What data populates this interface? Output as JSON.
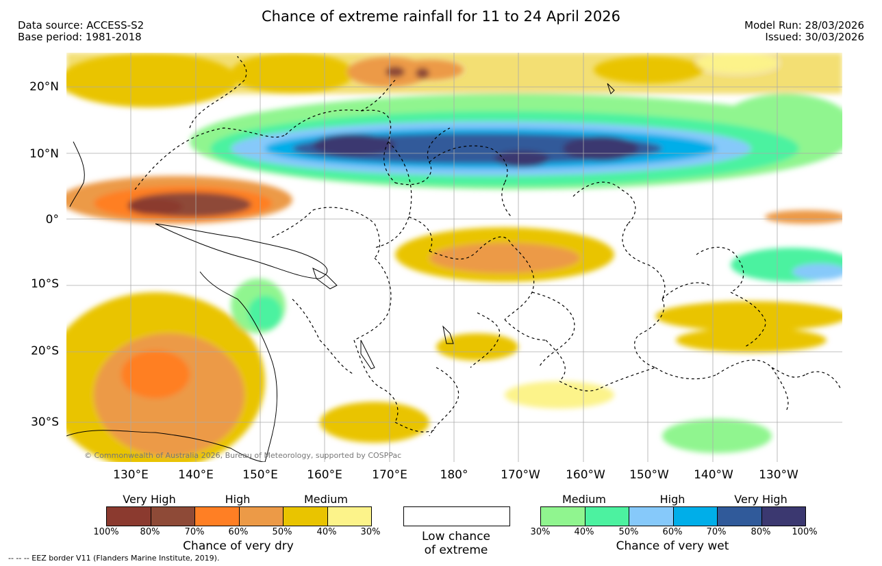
{
  "header": {
    "title": "Chance of extreme rainfall for 11 to 24 April 2026",
    "data_source": "Data source: ACCESS-S2",
    "base_period": "Base period: 1981-2018",
    "model_run": "Model Run: 28/03/2026",
    "issued": "Issued: 30/03/2026"
  },
  "map": {
    "lat_labels": [
      "20°N",
      "10°N",
      "0°",
      "10°S",
      "20°S",
      "30°S"
    ],
    "lon_labels": [
      "130°E",
      "140°E",
      "150°E",
      "160°E",
      "170°E",
      "180°",
      "170°W",
      "160°W",
      "150°W",
      "140°W",
      "130°W"
    ],
    "copyright": "© Commonwealth of Australia 2026, Bureau of Meteorology, supported by COSPPac"
  },
  "legend": {
    "dry": {
      "categories": [
        "Very High",
        "High",
        "Medium"
      ],
      "percents": [
        "100%",
        "80%",
        "70%",
        "60%",
        "50%",
        "40%",
        "30%"
      ],
      "colors": [
        "#8b3a2f",
        "#8e4a37",
        "#ff7f24",
        "#ec9a47",
        "#e9c400",
        "#fcf38a"
      ],
      "title": "Chance of very dry"
    },
    "neutral": {
      "line1": "Low chance",
      "line2": "of extreme",
      "color": "#ffffff"
    },
    "wet": {
      "categories": [
        "Medium",
        "High",
        "Very High"
      ],
      "percents": [
        "30%",
        "40%",
        "50%",
        "60%",
        "70%",
        "80%",
        "100%"
      ],
      "colors": [
        "#90f58f",
        "#4cf2a0",
        "#86c9fa",
        "#00aee9",
        "#305a9a",
        "#3b3870"
      ],
      "title": "Chance of very wet"
    }
  },
  "footnote": "--  --  -- EEZ border V11 (Flanders Marine Institute, 2019)."
}
